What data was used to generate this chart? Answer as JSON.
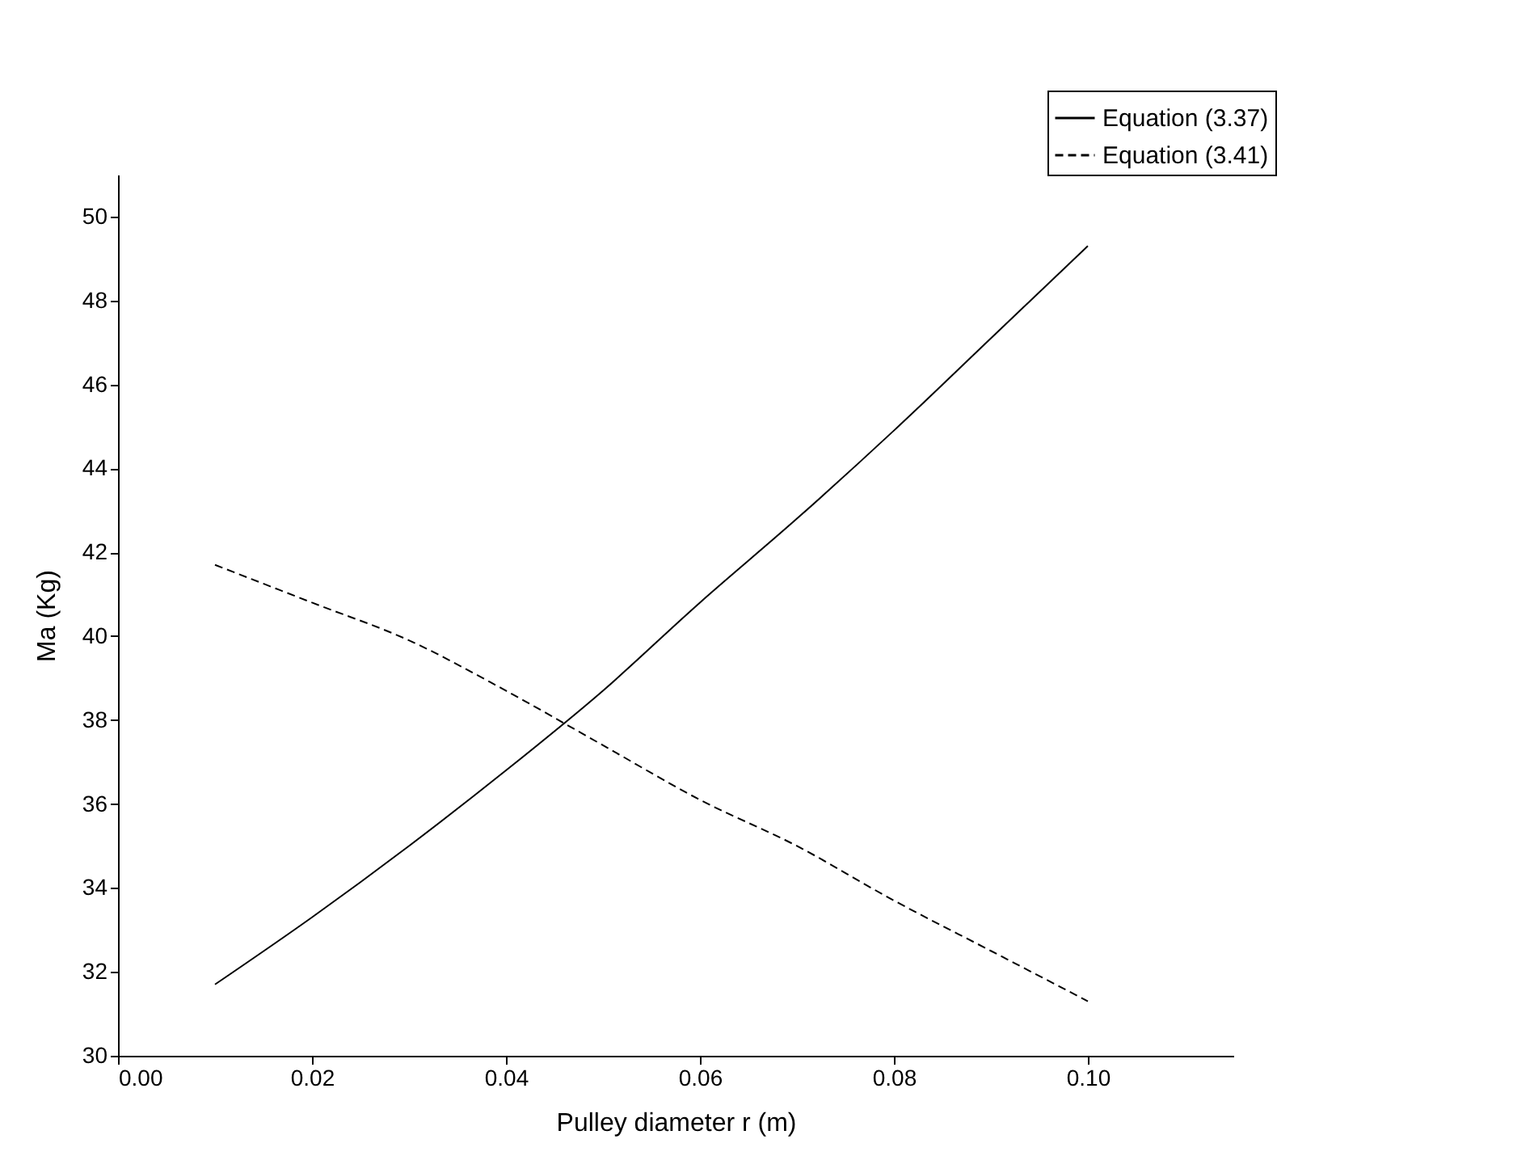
{
  "chart_data": {
    "type": "line",
    "xlabel": "Pulley diameter r    (m)",
    "ylabel": "Ma    (Kg)",
    "x": [
      0.01,
      0.02,
      0.03,
      0.04,
      0.05,
      0.06,
      0.07,
      0.08,
      0.09,
      0.1
    ],
    "series": [
      {
        "name": "Equation (3.37)",
        "color": "#000000",
        "line_style": "solid",
        "values": [
          31.7,
          33.3,
          35.0,
          36.8,
          38.7,
          40.8,
          42.8,
          44.9,
          47.1,
          49.3
        ]
      },
      {
        "name": "Equation (3.41)",
        "color": "#000000",
        "line_style": "dashed",
        "values": [
          41.7,
          40.8,
          39.9,
          38.7,
          37.4,
          36.1,
          35.0,
          33.7,
          32.5,
          31.3
        ]
      }
    ],
    "xlim": [
      0,
      0.115
    ],
    "ylim": [
      30,
      51
    ],
    "xticks": [
      {
        "value": 0,
        "label": "0.00"
      },
      {
        "value": 0.02,
        "label": "0.02"
      },
      {
        "value": 0.04,
        "label": "0.04"
      },
      {
        "value": 0.06,
        "label": "0.06"
      },
      {
        "value": 0.08,
        "label": "0.08"
      },
      {
        "value": 0.1,
        "label": "0.10"
      }
    ],
    "yticks": [
      30,
      32,
      34,
      36,
      38,
      40,
      42,
      44,
      46,
      48,
      50
    ],
    "grid": false,
    "legend": "top right",
    "marker": "none"
  }
}
